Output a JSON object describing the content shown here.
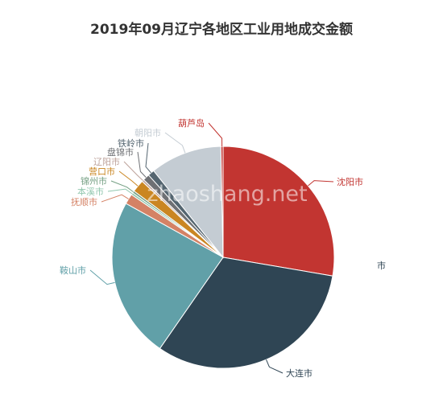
{
  "chart_data": {
    "type": "pie",
    "title": "2019年09月辽宁各地区工业用地成交金额",
    "slices": [
      {
        "name": "沈阳市",
        "value": 26.0,
        "color": "#c23531"
      },
      {
        "name": "大连市",
        "value": 30.0,
        "color": "#2f4554"
      },
      {
        "name": "鞍山市",
        "value": 22.0,
        "color": "#61a0a8"
      },
      {
        "name": "抚顺市",
        "value": 1.4,
        "color": "#d48265"
      },
      {
        "name": "本溪市",
        "value": 0.3,
        "color": "#91c7ae"
      },
      {
        "name": "锦州市",
        "value": 0.3,
        "color": "#749f83"
      },
      {
        "name": "营口市",
        "value": 1.7,
        "color": "#ca8622"
      },
      {
        "name": "辽阳市",
        "value": 0.3,
        "color": "#bda29a"
      },
      {
        "name": "盘锦市",
        "value": 0.9,
        "color": "#6e7074"
      },
      {
        "name": "铁岭市",
        "value": 0.9,
        "color": "#546570"
      },
      {
        "name": "朝阳市",
        "value": 9.8,
        "color": "#c4ccd3"
      },
      {
        "name": "葫芦岛",
        "value": 0.3,
        "color": "#c23531"
      }
    ],
    "legend_fragment": "市"
  },
  "watermark": "zhaoshang.net"
}
